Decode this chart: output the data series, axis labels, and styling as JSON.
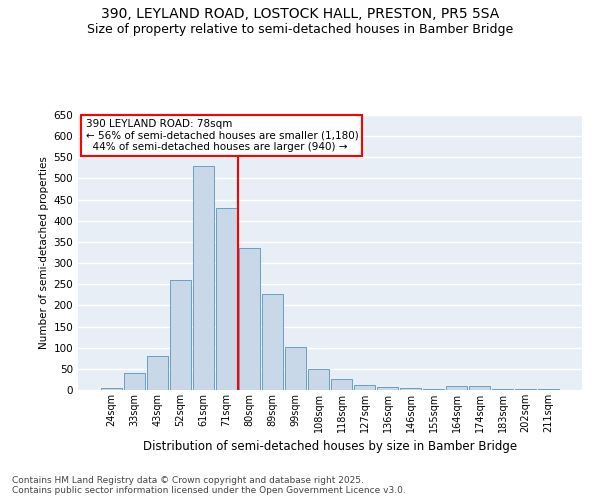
{
  "title": "390, LEYLAND ROAD, LOSTOCK HALL, PRESTON, PR5 5SA",
  "subtitle": "Size of property relative to semi-detached houses in Bamber Bridge",
  "xlabel": "Distribution of semi-detached houses by size in Bamber Bridge",
  "ylabel": "Number of semi-detached properties",
  "categories": [
    "24sqm",
    "33sqm",
    "43sqm",
    "52sqm",
    "61sqm",
    "71sqm",
    "80sqm",
    "89sqm",
    "99sqm",
    "108sqm",
    "118sqm",
    "127sqm",
    "136sqm",
    "146sqm",
    "155sqm",
    "164sqm",
    "174sqm",
    "183sqm",
    "202sqm",
    "211sqm"
  ],
  "values": [
    5,
    40,
    80,
    260,
    530,
    430,
    335,
    228,
    102,
    50,
    27,
    13,
    7,
    5,
    2,
    10,
    10,
    2,
    2,
    2
  ],
  "bar_color": "#c8d8e8",
  "bar_edge_color": "#6a9fc0",
  "vline_x": 5.5,
  "vline_color": "red",
  "annotation_text": "390 LEYLAND ROAD: 78sqm\n← 56% of semi-detached houses are smaller (1,180)\n  44% of semi-detached houses are larger (940) →",
  "annotation_box_color": "white",
  "annotation_box_edge_color": "red",
  "ylim": [
    0,
    650
  ],
  "yticks": [
    0,
    50,
    100,
    150,
    200,
    250,
    300,
    350,
    400,
    450,
    500,
    550,
    600,
    650
  ],
  "background_color": "#e8eef5",
  "grid_color": "white",
  "footer_line1": "Contains HM Land Registry data © Crown copyright and database right 2025.",
  "footer_line2": "Contains public sector information licensed under the Open Government Licence v3.0.",
  "title_fontsize": 10,
  "subtitle_fontsize": 9,
  "footer_fontsize": 6.5
}
